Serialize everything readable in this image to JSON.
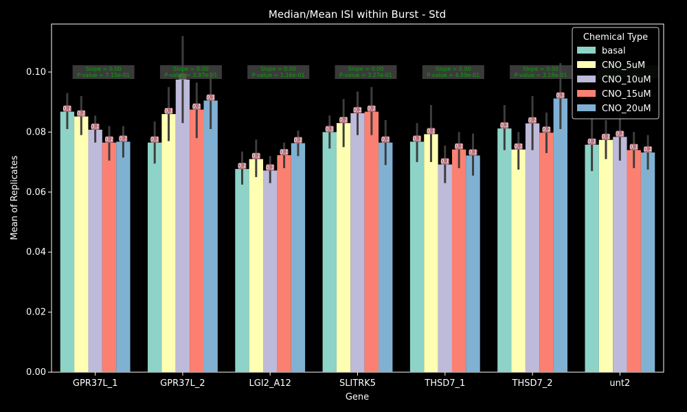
{
  "chart_data": {
    "type": "bar",
    "title": "Median/Mean ISI within Burst - Std",
    "xlabel": "Gene",
    "ylabel": "Mean of Replicates",
    "ylim": [
      0,
      0.116
    ],
    "yticks": [
      0.0,
      0.02,
      0.04,
      0.06,
      0.08,
      0.1
    ],
    "ytick_labels": [
      "0.00",
      "0.02",
      "0.04",
      "0.06",
      "0.08",
      "0.10"
    ],
    "grid": false,
    "categories": [
      "GPR37L_1",
      "GPR37L_2",
      "LGI2_A12",
      "SLITRK5",
      "THSD7_1",
      "THSD7_2",
      "unt2"
    ],
    "legend": {
      "title": "Chemical Type",
      "position": "top-right"
    },
    "series": [
      {
        "name": "basal",
        "color": "#8dd3c7",
        "values": [
          0.0868,
          0.0765,
          0.0677,
          0.08,
          0.0768,
          0.0812,
          0.0758
        ]
      },
      {
        "name": "CNO_5uM",
        "color": "#ffffb3",
        "values": [
          0.0852,
          0.086,
          0.071,
          0.083,
          0.0793,
          0.0742,
          0.0774
        ]
      },
      {
        "name": "CNO_10uM",
        "color": "#bebada",
        "values": [
          0.0808,
          0.0975,
          0.0672,
          0.0863,
          0.0692,
          0.0829,
          0.0784
        ]
      },
      {
        "name": "CNO_15uM",
        "color": "#fb8072",
        "values": [
          0.0765,
          0.0875,
          0.0723,
          0.0868,
          0.0742,
          0.0798,
          0.074
        ]
      },
      {
        "name": "CNO_20uM",
        "color": "#80b1d3",
        "values": [
          0.0768,
          0.0905,
          0.0763,
          0.0765,
          0.0722,
          0.0912,
          0.0732
        ]
      }
    ],
    "error_bars": {
      "lower": [
        [
          0.081,
          0.0695,
          0.0625,
          0.0745,
          0.07,
          0.074,
          0.067
        ],
        [
          0.079,
          0.077,
          0.065,
          0.075,
          0.07,
          0.0675,
          0.071
        ],
        [
          0.0765,
          0.083,
          0.063,
          0.079,
          0.063,
          0.074,
          0.0705
        ],
        [
          0.0705,
          0.078,
          0.068,
          0.079,
          0.068,
          0.073,
          0.068
        ],
        [
          0.0715,
          0.081,
          0.072,
          0.069,
          0.0655,
          0.081,
          0.0675
        ]
      ],
      "upper": [
        [
          0.093,
          0.0835,
          0.0735,
          0.0855,
          0.083,
          0.089,
          0.085
        ],
        [
          0.092,
          0.095,
          0.0775,
          0.091,
          0.089,
          0.08,
          0.084
        ],
        [
          0.0855,
          0.112,
          0.072,
          0.0935,
          0.0755,
          0.092,
          0.086
        ],
        [
          0.082,
          0.0965,
          0.0765,
          0.095,
          0.08,
          0.0865,
          0.08
        ],
        [
          0.082,
          0.1,
          0.0805,
          0.084,
          0.0795,
          0.103,
          0.079
        ]
      ]
    },
    "bar_value_label": "0.1",
    "annotations": [
      {
        "line1": "Slope = 0.00",
        "line2": "P-value = 7.15e-01"
      },
      {
        "line1": "Slope = 0.00",
        "line2": "P-value = 3.97e-01"
      },
      {
        "line1": "Slope = 0.00",
        "line2": "P-value = 1.16e-01"
      },
      {
        "line1": "Slope = 0.00",
        "line2": "P-value = 3.27e-01"
      },
      {
        "line1": "Slope = 0.00",
        "line2": "P-value = 4.59e-01"
      },
      {
        "line1": "Slope = 0.00",
        "line2": "P-value = 3.18e-01"
      },
      {
        "line1": "Slope = 0.00",
        "line2": "P-value = 9.00e-01"
      }
    ]
  }
}
